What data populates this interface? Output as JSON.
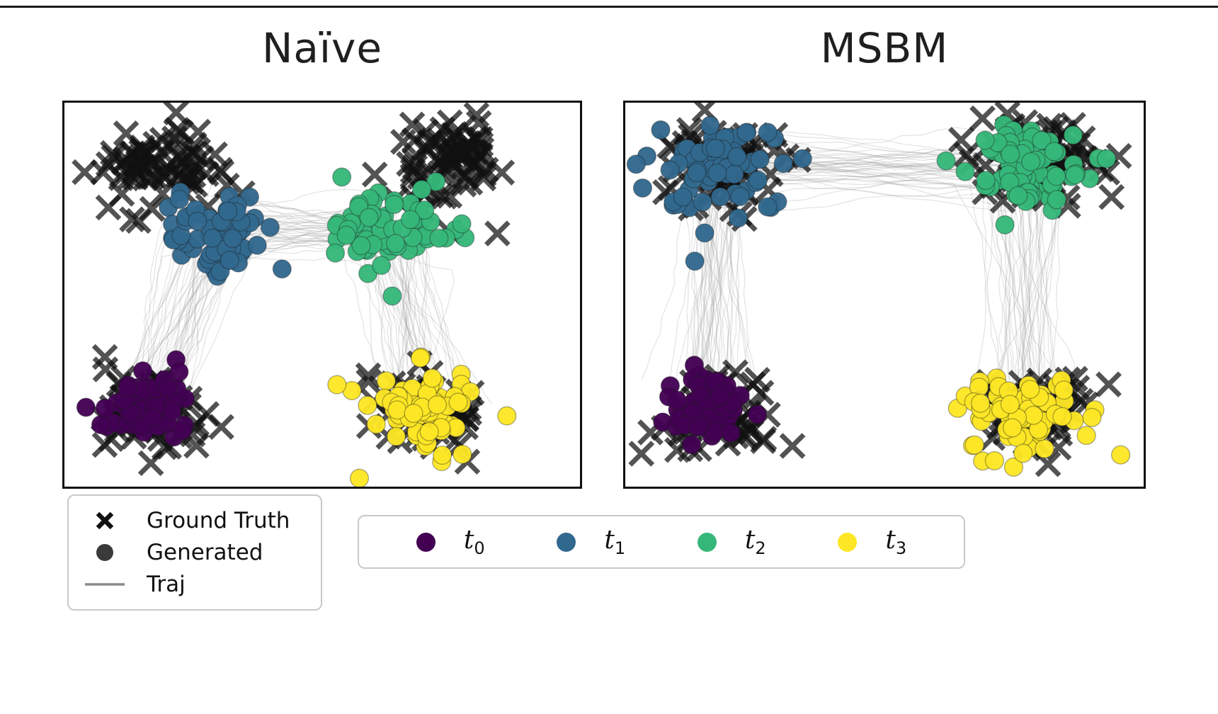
{
  "page": {
    "top_rule_color": "#1a1a1a"
  },
  "chart_data": {
    "type": "scatter",
    "panel_size": [
      734,
      548
    ],
    "style": {
      "truth_color": "#111111",
      "x_half_size": 16,
      "x_stroke_width": 7,
      "x_opacity": 0.72,
      "dot_radius": 13,
      "dot_edge_color": "#1a1a1a",
      "dot_edge_opacity": 0.35,
      "traj_color": "#999999",
      "traj_opacity": 0.28,
      "traj_width": 1.2,
      "traj_steps_per_segment": 16,
      "traj_wiggle": 2.6
    },
    "colors": {
      "t0": "#440154",
      "t1": "#31688e",
      "t2": "#35b779",
      "t3": "#fde725"
    },
    "panels": [
      {
        "title": "Naïve",
        "seed": 7,
        "ground_truth": [
          {
            "corner": "top-left",
            "center": [
              0.19,
              0.15
            ],
            "spread": 0.058,
            "count": 75
          },
          {
            "corner": "top-right",
            "center": [
              0.75,
              0.15
            ],
            "spread": 0.058,
            "count": 75
          },
          {
            "corner": "bottom-left",
            "center": [
              0.17,
              0.8
            ],
            "spread": 0.052,
            "count": 75
          },
          {
            "corner": "bottom-right",
            "center": [
              0.71,
              0.8
            ],
            "spread": 0.048,
            "count": 75
          }
        ],
        "generated": [
          {
            "time": "t0",
            "center": [
              0.16,
              0.79
            ],
            "spread": 0.042,
            "count": 70
          },
          {
            "time": "t1",
            "center": [
              0.29,
              0.33
            ],
            "spread": 0.055,
            "count": 65
          },
          {
            "time": "t2",
            "center": [
              0.63,
              0.33
            ],
            "spread": 0.055,
            "count": 65
          },
          {
            "time": "t3",
            "center": [
              0.7,
              0.8
            ],
            "spread": 0.05,
            "count": 65,
            "halo": {
              "count": 5,
              "spread": 0.11
            }
          }
        ],
        "trajectories": {
          "count": 45,
          "endpoint_jitter": 0.045,
          "waypoints": [
            [
              0.16,
              0.79
            ],
            [
              0.29,
              0.33
            ],
            [
              0.63,
              0.33
            ],
            [
              0.7,
              0.8
            ]
          ]
        }
      },
      {
        "title": "MSBM",
        "seed": 13,
        "ground_truth": [
          {
            "corner": "top-left",
            "center": [
              0.17,
              0.16
            ],
            "spread": 0.055,
            "count": 75
          },
          {
            "corner": "top-right",
            "center": [
              0.8,
              0.16
            ],
            "spread": 0.055,
            "count": 75
          },
          {
            "corner": "bottom-left",
            "center": [
              0.17,
              0.81
            ],
            "spread": 0.052,
            "count": 75
          },
          {
            "corner": "bottom-right",
            "center": [
              0.79,
              0.81
            ],
            "spread": 0.048,
            "count": 75
          }
        ],
        "generated": [
          {
            "time": "t0",
            "center": [
              0.16,
              0.79
            ],
            "spread": 0.042,
            "count": 70
          },
          {
            "time": "t1",
            "center": [
              0.17,
              0.17
            ],
            "spread": 0.055,
            "count": 65,
            "halo": {
              "count": 9,
              "spread": 0.13
            }
          },
          {
            "time": "t2",
            "center": [
              0.77,
              0.18
            ],
            "spread": 0.055,
            "count": 65,
            "halo": {
              "count": 7,
              "spread": 0.11
            }
          },
          {
            "time": "t3",
            "center": [
              0.77,
              0.8
            ],
            "spread": 0.052,
            "count": 65,
            "halo": {
              "count": 6,
              "spread": 0.12
            }
          }
        ],
        "trajectories": {
          "count": 45,
          "endpoint_jitter": 0.045,
          "waypoints": [
            [
              0.16,
              0.79
            ],
            [
              0.17,
              0.17
            ],
            [
              0.77,
              0.18
            ],
            [
              0.77,
              0.8
            ]
          ]
        }
      }
    ],
    "legend_markers": {
      "items": [
        {
          "marker": "x",
          "label": "Ground Truth",
          "color": "#111111"
        },
        {
          "marker": "dot",
          "label": "Generated",
          "color": "#3a3a3a"
        },
        {
          "marker": "line",
          "label": "Traj",
          "color": "#8a8a8a"
        }
      ]
    },
    "legend_times": {
      "items": [
        {
          "base": "t",
          "sub": "0",
          "color": "#440154"
        },
        {
          "base": "t",
          "sub": "1",
          "color": "#31688e"
        },
        {
          "base": "t",
          "sub": "2",
          "color": "#35b779"
        },
        {
          "base": "t",
          "sub": "3",
          "color": "#fde725"
        }
      ]
    }
  }
}
